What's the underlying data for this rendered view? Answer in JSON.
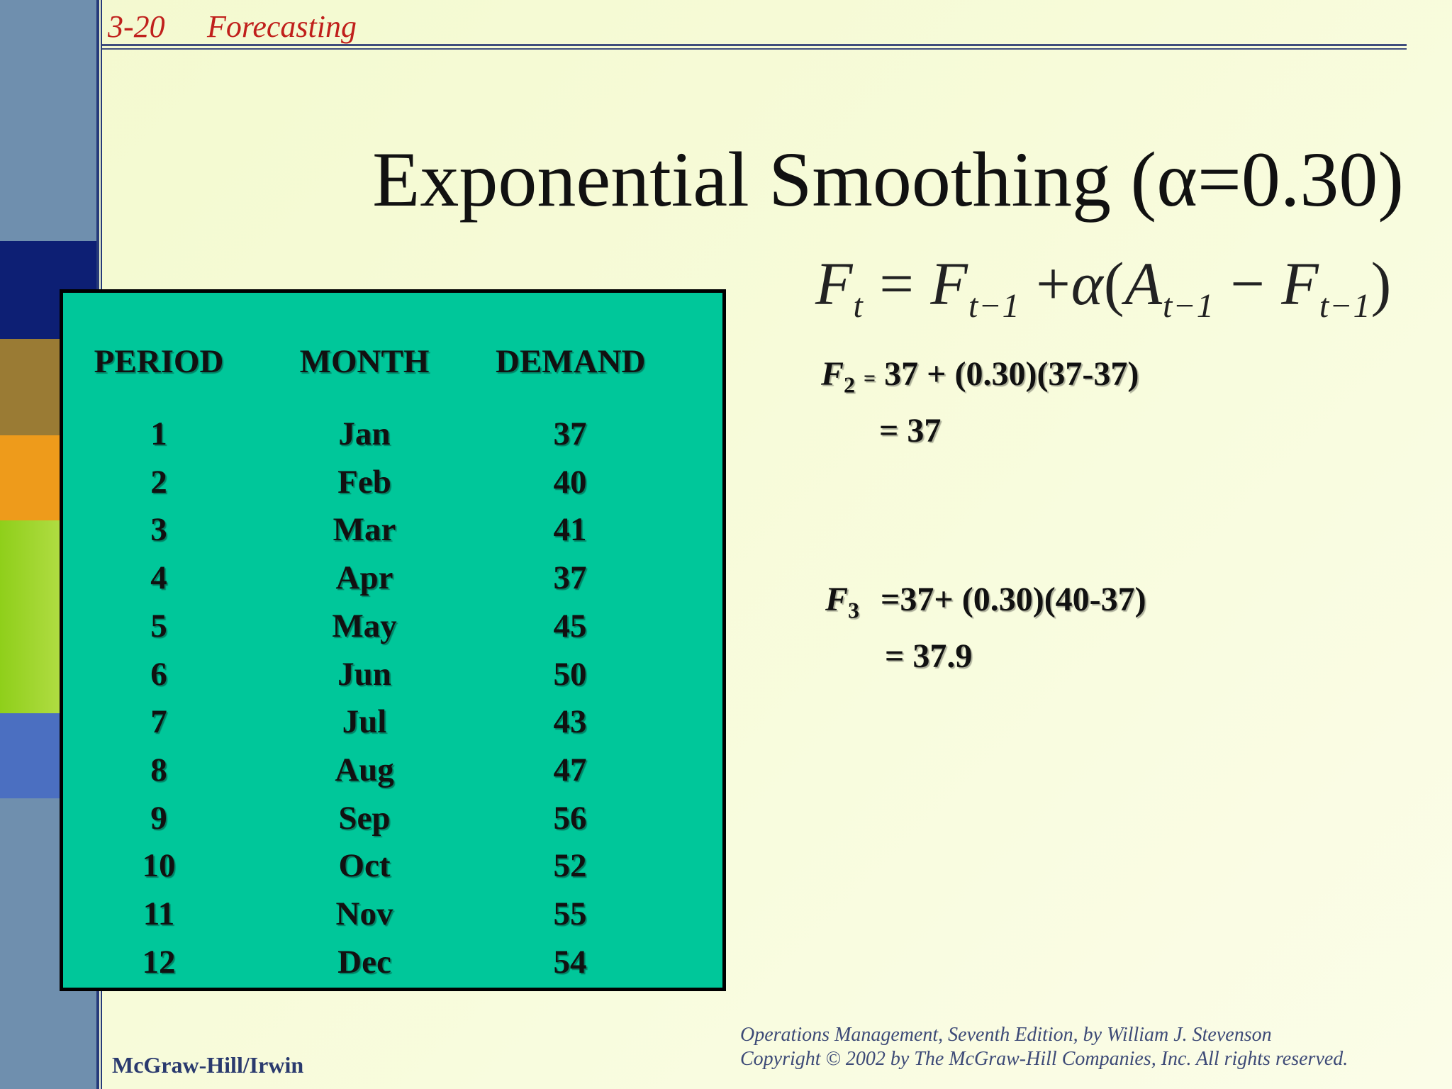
{
  "header": {
    "slide_number": "3-20",
    "section": "Forecasting"
  },
  "title": "Exponential Smoothing (α=0.30)",
  "formula": {
    "lhs": "F",
    "lhs_sub": "t",
    "eq": "=",
    "f1": "F",
    "f1_sub": "t−1",
    "plus": "+",
    "alpha": "α",
    "open": "(",
    "a": "A",
    "a_sub": "t−1",
    "minus": "−",
    "f2": "F",
    "f2_sub": "t−1",
    "close": ")"
  },
  "table": {
    "headers": [
      "PERIOD",
      "MONTH",
      "DEMAND"
    ],
    "rows": [
      [
        "1",
        "Jan",
        "37"
      ],
      [
        "2",
        "Feb",
        "40"
      ],
      [
        "3",
        "Mar",
        "41"
      ],
      [
        "4",
        "Apr",
        "37"
      ],
      [
        "5",
        "May",
        "45"
      ],
      [
        "6",
        "Jun",
        "50"
      ],
      [
        "7",
        "Jul",
        "43"
      ],
      [
        "8",
        "Aug",
        "47"
      ],
      [
        "9",
        "Sep",
        "56"
      ],
      [
        "10",
        "Oct",
        "52"
      ],
      [
        "11",
        "Nov",
        "55"
      ],
      [
        "12",
        "Dec",
        "54"
      ]
    ]
  },
  "calc_f2": {
    "symbol": "F",
    "sub": "2",
    "eq": "=",
    "expr": "37 + (0.30)(37-37)",
    "result": "= 37"
  },
  "calc_f3": {
    "symbol": "F",
    "sub": "3",
    "expr": "=37+ (0.30)(40-37)",
    "result": "= 37.9"
  },
  "footer": {
    "publisher": "McGraw-Hill/Irwin",
    "citation_1": "Operations Management, Seventh Edition, by William J. Stevenson",
    "citation_2": "Copyright © 2002 by The McGraw-Hill Companies, Inc.  All rights reserved."
  }
}
